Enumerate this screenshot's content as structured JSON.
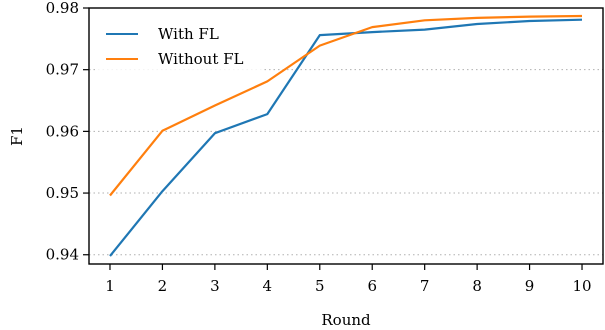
{
  "chart_data": {
    "type": "line",
    "title": "",
    "xlabel": "Round",
    "ylabel": "F1",
    "x": [
      1,
      2,
      3,
      4,
      5,
      6,
      7,
      8,
      9,
      10
    ],
    "xlim": [
      0.6,
      10.4
    ],
    "ylim": [
      0.9385,
      0.98
    ],
    "yticks": [
      "0.94",
      "0.95",
      "0.96",
      "0.97",
      "0.98"
    ],
    "grid": "horizontal dotted",
    "legend": "top-left",
    "series": [
      {
        "name": "With FL",
        "color": "#1f77b4",
        "values": [
          0.9398,
          0.9503,
          0.9597,
          0.9628,
          0.9756,
          0.9761,
          0.9765,
          0.9774,
          0.9779,
          0.9781
        ]
      },
      {
        "name": "Without FL",
        "color": "#ff7f0e",
        "values": [
          0.9496,
          0.9601,
          0.9642,
          0.9681,
          0.9739,
          0.9769,
          0.978,
          0.9784,
          0.9786,
          0.9787
        ]
      }
    ]
  }
}
